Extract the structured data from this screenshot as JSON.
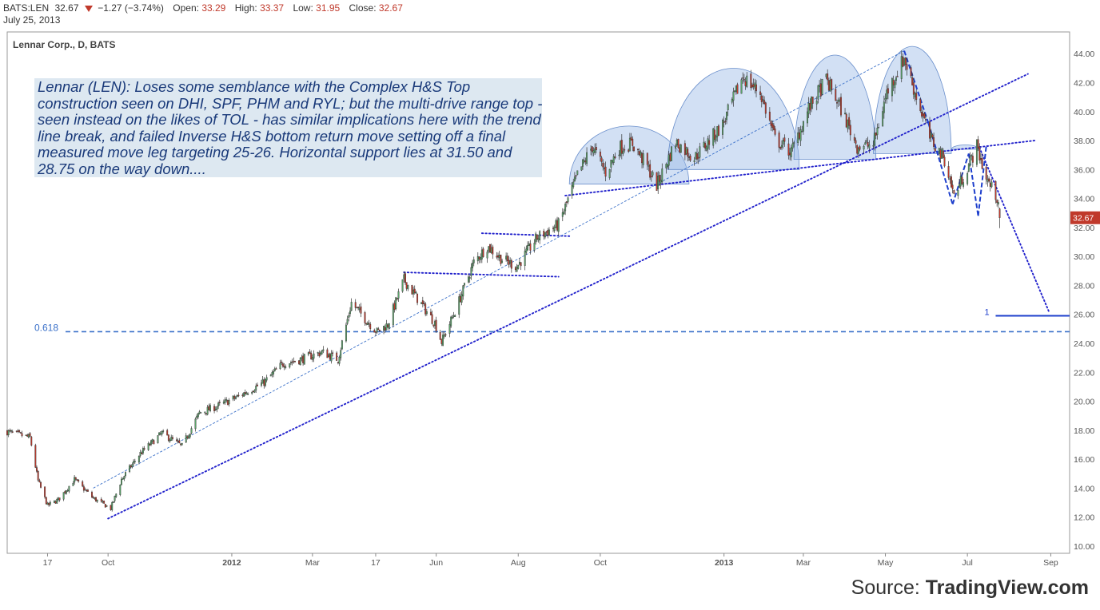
{
  "header": {
    "symbol": "BATS:LEN",
    "last": "32.67",
    "change": "−1.27 (−3.74%)",
    "open_label": "Open:",
    "open": "33.29",
    "high_label": "High:",
    "high": "33.37",
    "low_label": "Low:",
    "low": "31.95",
    "close_label": "Close:",
    "close": "32.67",
    "date": "July 25, 2013",
    "down_color": "#c0392b"
  },
  "pane_title": "Lennar Corp., D, BATS",
  "source": {
    "prefix": "Source: ",
    "brand": "TradingView.com"
  },
  "chart_data": {
    "type": "candlestick",
    "title": "Lennar Corp., D, BATS",
    "ylim": [
      9.5,
      45.5
    ],
    "y_ticks": [
      "10.00",
      "12.00",
      "14.00",
      "16.00",
      "18.00",
      "20.00",
      "22.00",
      "24.00",
      "26.00",
      "28.00",
      "30.00",
      "32.00",
      "34.00",
      "36.00",
      "38.00",
      "40.00",
      "42.00",
      "44.00"
    ],
    "y_tick_values": [
      10,
      12,
      14,
      16,
      18,
      20,
      22,
      24,
      26,
      28,
      30,
      32,
      34,
      36,
      38,
      40,
      42,
      44
    ],
    "x_range": [
      "2011-07-18",
      "2013-09-15"
    ],
    "x_ticks": [
      {
        "label": "17",
        "date": "2011-08-17"
      },
      {
        "label": "Oct",
        "date": "2011-10-01"
      },
      {
        "label": "2012",
        "date": "2012-01-01",
        "bold": true
      },
      {
        "label": "Mar",
        "date": "2012-03-01"
      },
      {
        "label": "17",
        "date": "2012-04-17"
      },
      {
        "label": "Jun",
        "date": "2012-06-01"
      },
      {
        "label": "Aug",
        "date": "2012-08-01"
      },
      {
        "label": "Oct",
        "date": "2012-10-01"
      },
      {
        "label": "2013",
        "date": "2013-01-01",
        "bold": true
      },
      {
        "label": "Mar",
        "date": "2013-03-01"
      },
      {
        "label": "May",
        "date": "2013-05-01"
      },
      {
        "label": "Jul",
        "date": "2013-07-01"
      },
      {
        "label": "Sep",
        "date": "2013-09-01"
      }
    ],
    "price_path": [
      [
        "2011-07-18",
        17.9
      ],
      [
        "2011-08-04",
        17.5
      ],
      [
        "2011-08-10",
        14.5
      ],
      [
        "2011-08-17",
        12.8
      ],
      [
        "2011-08-25",
        13.2
      ],
      [
        "2011-09-06",
        14.6
      ],
      [
        "2011-09-20",
        13.3
      ],
      [
        "2011-10-03",
        12.6
      ],
      [
        "2011-10-11",
        14.6
      ],
      [
        "2011-10-25",
        16.4
      ],
      [
        "2011-11-10",
        17.8
      ],
      [
        "2011-11-25",
        16.9
      ],
      [
        "2011-12-08",
        19.2
      ],
      [
        "2011-12-20",
        19.6
      ],
      [
        "2012-01-05",
        20.3
      ],
      [
        "2012-01-25",
        21.3
      ],
      [
        "2012-02-08",
        22.6
      ],
      [
        "2012-02-22",
        22.9
      ],
      [
        "2012-03-08",
        23.4
      ],
      [
        "2012-03-20",
        22.9
      ],
      [
        "2012-03-30",
        26.8
      ],
      [
        "2012-04-10",
        25.6
      ],
      [
        "2012-04-18",
        24.8
      ],
      [
        "2012-04-26",
        25.3
      ],
      [
        "2012-05-08",
        28.4
      ],
      [
        "2012-05-18",
        27.1
      ],
      [
        "2012-05-31",
        25.4
      ],
      [
        "2012-06-05",
        24.1
      ],
      [
        "2012-06-15",
        26.2
      ],
      [
        "2012-06-29",
        29.6
      ],
      [
        "2012-07-09",
        30.7
      ],
      [
        "2012-07-20",
        29.8
      ],
      [
        "2012-07-31",
        29.3
      ],
      [
        "2012-08-15",
        31.3
      ],
      [
        "2012-08-31",
        32.2
      ],
      [
        "2012-09-14",
        35.6
      ],
      [
        "2012-09-25",
        37.6
      ],
      [
        "2012-10-05",
        35.8
      ],
      [
        "2012-10-15",
        37.5
      ],
      [
        "2012-10-25",
        37.8
      ],
      [
        "2012-11-05",
        36.2
      ],
      [
        "2012-11-12",
        34.9
      ],
      [
        "2012-11-26",
        37.9
      ],
      [
        "2012-12-10",
        36.8
      ],
      [
        "2012-12-31",
        39.1
      ],
      [
        "2013-01-15",
        42.4
      ],
      [
        "2013-01-28",
        41.3
      ],
      [
        "2013-02-08",
        38.1
      ],
      [
        "2013-02-20",
        37.2
      ],
      [
        "2013-03-05",
        40.2
      ],
      [
        "2013-03-18",
        42.2
      ],
      [
        "2013-03-28",
        40.4
      ],
      [
        "2013-04-10",
        37.6
      ],
      [
        "2013-04-22",
        37.7
      ],
      [
        "2013-05-02",
        41.3
      ],
      [
        "2013-05-15",
        43.7
      ],
      [
        "2013-05-22",
        41.6
      ],
      [
        "2013-06-03",
        38.2
      ],
      [
        "2013-06-14",
        36.7
      ],
      [
        "2013-06-21",
        34.2
      ],
      [
        "2013-07-01",
        36.1
      ],
      [
        "2013-07-08",
        37.6
      ],
      [
        "2013-07-15",
        35.4
      ],
      [
        "2013-07-24",
        33.9
      ],
      [
        "2013-07-25",
        32.67
      ]
    ],
    "up_color": "#5aa469",
    "down_color": "#c0392b",
    "last_price_label": "32.67",
    "annotation": "Lennar (LEN): Loses some semblance with the Complex H&S Top construction seen on DHI, SPF, PHM and RYL; but the multi-drive range top - seen instead on the likes of TOL - has similar implications here with the trend line break, and failed Inverse H&S bottom return move setting off a final measured move leg targeting 25-26.  Horizontal support lies at 31.50 and 28.75 on the way down....",
    "fib_label": "0.618",
    "fib_level": 24.8,
    "target_label": "1",
    "target_level": 25.9,
    "colors": {
      "trend": "#2222cc",
      "fib": "#3a70c9",
      "hs_fill": "#9bbbe6",
      "annotation_text": "#1a3a7a",
      "annotation_bg": "#dde8f1"
    }
  }
}
